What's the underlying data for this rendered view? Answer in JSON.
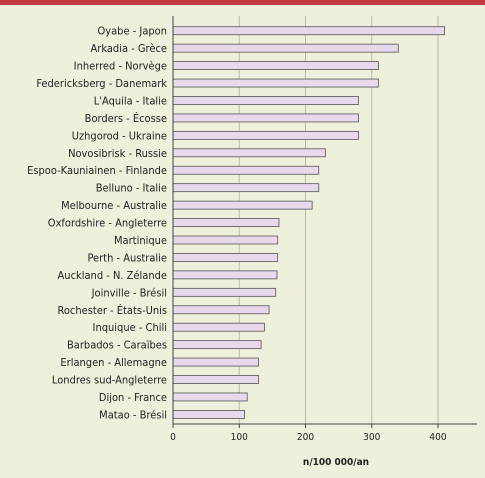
{
  "chart_data": {
    "type": "bar",
    "orientation": "horizontal",
    "categories": [
      "Oyabe - Japon",
      "Arkadia - Grèce",
      "Inherred - Norvège",
      "Federicksberg - Danemark",
      "L'Aquila - Italie",
      "Borders - Écosse",
      "Uzhgorod - Ukraine",
      "Novosibrisk - Russie",
      "Espoo-Kauniainen - Finlande",
      "Belluno - Italie",
      "Melbourne - Australie",
      "Oxfordshire - Angleterre",
      "Martinique",
      "Perth - Australie",
      "Auckland - N. Zélande",
      "Joinville - Brésil",
      "Rochester - États-Unis",
      "Inquique - Chili",
      "Barbados - Caraïbes",
      "Erlangen - Allemagne",
      "Londres sud-Angleterre",
      "Dijon - France",
      "Matao - Brésil"
    ],
    "values": [
      410,
      340,
      310,
      310,
      280,
      280,
      280,
      230,
      220,
      220,
      210,
      160,
      158,
      158,
      157,
      155,
      145,
      138,
      133,
      129,
      129,
      112,
      108
    ],
    "xlabel": "n/100 000/an",
    "ylabel": "",
    "xlim": [
      0,
      460
    ],
    "ticks": [
      0,
      100,
      200,
      300,
      400
    ],
    "grid": true,
    "colors": {
      "bar_fill": "#e8d8ec",
      "bar_stroke": "#555555",
      "grid": "#b8bca8",
      "background": "#eef0dc",
      "accent_bar": "#c1393f"
    }
  }
}
